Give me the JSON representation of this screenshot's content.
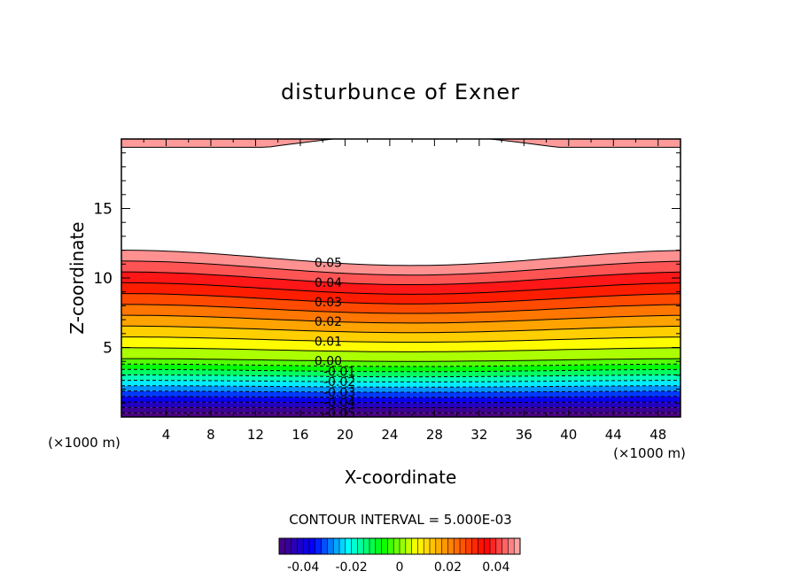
{
  "chart_data": {
    "type": "contour",
    "title": "disturbunce of Exner",
    "xlabel": "X-coordinate",
    "ylabel": "Z-coordinate",
    "x_unit": "(×1000 m)",
    "xlim": [
      0,
      50
    ],
    "ylim": [
      0,
      20
    ],
    "x_ticks": [
      "4",
      "8",
      "12",
      "16",
      "20",
      "24",
      "28",
      "32",
      "36",
      "40",
      "44",
      "48"
    ],
    "y_ticks": [
      "5",
      "10",
      "15"
    ],
    "contour_interval_text": "CONTOUR INTERVAL = 5.000E-03",
    "contour_labels": [
      "0.05",
      "0.04",
      "0.03",
      "0.02",
      "0.01",
      "0.00",
      "-0.01",
      "-0.02",
      "-0.03",
      "-0.04",
      "-0.05"
    ],
    "colorbar": {
      "range": [
        -0.05,
        0.05
      ],
      "tick_labels": [
        "-0.04",
        "-0.02",
        "0",
        "0.02",
        "0.04"
      ],
      "colormap": [
        "#4a007f",
        "#0000ff",
        "#00ffff",
        "#00ff00",
        "#ffff00",
        "#ff8000",
        "#ff0000",
        "#ffb0b0"
      ]
    },
    "field_description_levels": {
      "zero_contour_height_at_x0": 4.2,
      "zero_contour_height_at_x25": 4.0,
      "top_0_05_contour_height_at_x0": 12.0,
      "top_0_05_contour_height_at_x25": 10.9
    }
  }
}
